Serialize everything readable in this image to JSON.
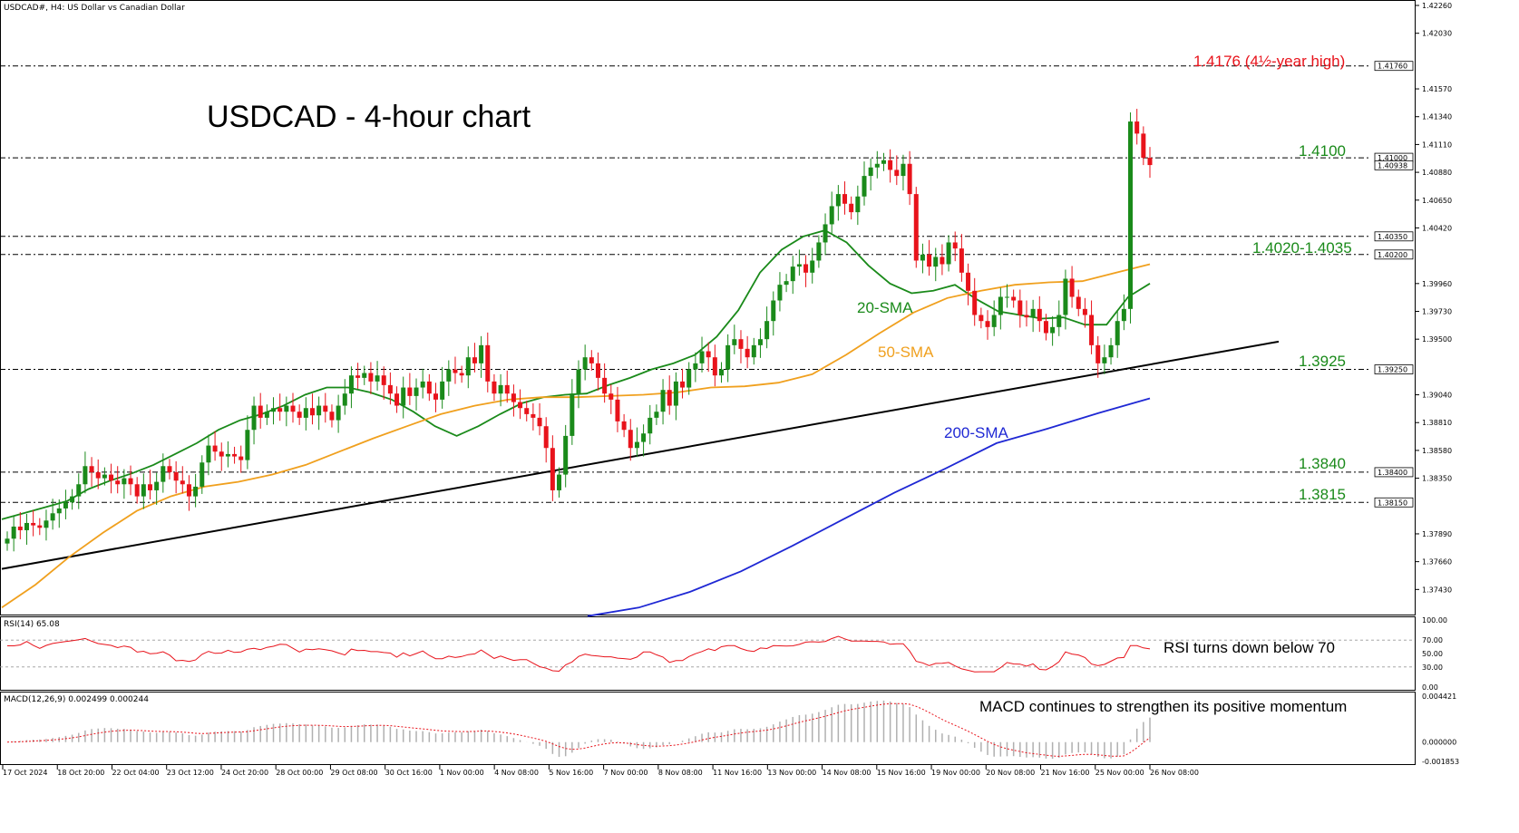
{
  "header": {
    "symbol_label": "USDCAD#, H4:  US Dollar vs Canadian Dollar",
    "title": "USDCAD - 4-hour chart"
  },
  "colors": {
    "bull": "#1a8a1a",
    "bear": "#e8131b",
    "sma20": "#1a8a1a",
    "sma50": "#f0a01e",
    "sma200": "#1f28d4",
    "trendline": "#000000",
    "level_red": "#e8131b",
    "level_green": "#1a8a1a",
    "rsi": "#e8131b",
    "macd_signal": "#e8131b",
    "macd_hist": "#b0b0b0",
    "grid_dash": "#000000"
  },
  "chart_data": [
    {
      "type": "candlestick",
      "name": "main",
      "ylim": [
        1.3723,
        1.4229
      ],
      "y_ticks": [
        "1.42260",
        "1.42030",
        "1.41570",
        "1.41340",
        "1.41110",
        "1.40880",
        "1.40650",
        "1.40420",
        "1.39960",
        "1.39730",
        "1.39500",
        "1.39040",
        "1.38810",
        "1.38580",
        "1.38350",
        "1.37890",
        "1.37660",
        "1.37430"
      ],
      "y_tick_values": [
        1.4226,
        1.4203,
        1.4157,
        1.4134,
        1.4111,
        1.4088,
        1.4065,
        1.4042,
        1.3996,
        1.3973,
        1.395,
        1.3904,
        1.3881,
        1.3858,
        1.3835,
        1.3789,
        1.3766,
        1.3743
      ],
      "price_tags": [
        {
          "label": "1.41760",
          "value": 1.4176
        },
        {
          "label": "1.41000",
          "value": 1.41
        },
        {
          "label": "1.40938",
          "value": 1.40938
        },
        {
          "label": "1.40350",
          "value": 1.4035
        },
        {
          "label": "1.40200",
          "value": 1.402
        },
        {
          "label": "1.39250",
          "value": 1.3925
        },
        {
          "label": "1.38400",
          "value": 1.384
        },
        {
          "label": "1.38150",
          "value": 1.3815
        }
      ],
      "levels": [
        {
          "label": "1.4176 (4½-year high)",
          "value": 1.4176,
          "color": "red"
        },
        {
          "label": "1.4100",
          "value": 1.41,
          "color": "green"
        },
        {
          "label": "1.4020-1.4035",
          "value": 1.4035,
          "value2": 1.402,
          "color": "green"
        },
        {
          "label": "1.3925",
          "value": 1.3925,
          "color": "green"
        },
        {
          "label": "1.3840",
          "value": 1.384,
          "color": "green"
        },
        {
          "label": "1.3815",
          "value": 1.3815,
          "color": "green"
        }
      ],
      "x_ticks": [
        "17 Oct 2024",
        "18 Oct 20:00",
        "22 Oct 04:00",
        "23 Oct 12:00",
        "24 Oct 20:00",
        "28 Oct 00:00",
        "29 Oct 08:00",
        "30 Oct 16:00",
        "1 Nov 00:00",
        "4 Nov 08:00",
        "5 Nov 16:00",
        "7 Nov 00:00",
        "8 Nov 08:00",
        "11 Nov 16:00",
        "13 Nov 00:00",
        "14 Nov 08:00",
        "15 Nov 16:00",
        "19 Nov 00:00",
        "20 Nov 08:00",
        "21 Nov 16:00",
        "25 Nov 00:00",
        "26 Nov 08:00"
      ],
      "ohlc_closes": [
        1.3785,
        1.3795,
        1.3792,
        1.3798,
        1.3796,
        1.3794,
        1.38,
        1.3806,
        1.381,
        1.3815,
        1.382,
        1.383,
        1.3845,
        1.384,
        1.3835,
        1.3838,
        1.3833,
        1.383,
        1.3835,
        1.383,
        1.382,
        1.383,
        1.3825,
        1.3832,
        1.3845,
        1.384,
        1.3833,
        1.383,
        1.382,
        1.3828,
        1.3848,
        1.3862,
        1.3857,
        1.3853,
        1.3855,
        1.3853,
        1.385,
        1.3875,
        1.3895,
        1.3885,
        1.389,
        1.3893,
        1.389,
        1.3895,
        1.389,
        1.3885,
        1.3893,
        1.3887,
        1.3895,
        1.389,
        1.3883,
        1.3895,
        1.3905,
        1.392,
        1.3918,
        1.3922,
        1.3915,
        1.392,
        1.3912,
        1.3905,
        1.3895,
        1.391,
        1.3903,
        1.391,
        1.3915,
        1.3905,
        1.39,
        1.3915,
        1.3925,
        1.3922,
        1.392,
        1.3935,
        1.393,
        1.3945,
        1.3915,
        1.3905,
        1.3912,
        1.3905,
        1.3898,
        1.3893,
        1.3888,
        1.3885,
        1.3878,
        1.386,
        1.3825,
        1.3838,
        1.387,
        1.3905,
        1.3925,
        1.3935,
        1.393,
        1.3918,
        1.3905,
        1.39,
        1.3882,
        1.3875,
        1.386,
        1.3865,
        1.3872,
        1.3885,
        1.389,
        1.3908,
        1.3895,
        1.3915,
        1.391,
        1.3925,
        1.393,
        1.394,
        1.3935,
        1.392,
        1.3925,
        1.3945,
        1.395,
        1.3942,
        1.3935,
        1.3945,
        1.395,
        1.3965,
        1.3982,
        1.3995,
        1.3998,
        1.401,
        1.4012,
        1.4005,
        1.4015,
        1.403,
        1.4045,
        1.406,
        1.407,
        1.4062,
        1.4055,
        1.4068,
        1.4085,
        1.4092,
        1.4095,
        1.4098,
        1.409,
        1.4085,
        1.4095,
        1.407,
        1.4015,
        1.402,
        1.401,
        1.4018,
        1.4012,
        1.403,
        1.4025,
        1.4005,
        1.399,
        1.397,
        1.3965,
        1.396,
        1.397,
        1.3985,
        1.3985,
        1.3982,
        1.397,
        1.3968,
        1.3975,
        1.3965,
        1.3955,
        1.396,
        1.397,
        1.4,
        1.3985,
        1.3975,
        1.397,
        1.3945,
        1.393,
        1.3935,
        1.3945,
        1.3965,
        1.3975,
        1.413,
        1.412,
        1.41,
        1.4094
      ],
      "sma20_approx": [
        1.3801,
        1.3806,
        1.3811,
        1.3816,
        1.3826,
        1.3833,
        1.3839,
        1.3846,
        1.3855,
        1.3864,
        1.3875,
        1.3883,
        1.3888,
        1.3895,
        1.3904,
        1.391,
        1.391,
        1.3906,
        1.39,
        1.389,
        1.3878,
        1.387,
        1.3878,
        1.3888,
        1.3897,
        1.3902,
        1.3904,
        1.3905,
        1.3912,
        1.3918,
        1.3925,
        1.393,
        1.3937,
        1.3952,
        1.3974,
        1.4005,
        1.4024,
        1.4035,
        1.404,
        1.403,
        1.4011,
        1.3996,
        1.3988,
        1.399,
        1.3995,
        1.3983,
        1.3973,
        1.397,
        1.3967,
        1.3968,
        1.3962,
        1.3962,
        1.3985,
        1.3996
      ],
      "sma50_approx": [
        1.3728,
        1.3747,
        1.377,
        1.379,
        1.3808,
        1.382,
        1.3828,
        1.3832,
        1.3838,
        1.3846,
        1.3857,
        1.3868,
        1.3878,
        1.3888,
        1.3895,
        1.39,
        1.3902,
        1.3902,
        1.3903,
        1.3904,
        1.3906,
        1.391,
        1.3911,
        1.3914,
        1.3921,
        1.3937,
        1.3955,
        1.3972,
        1.3984,
        1.399,
        1.3995,
        1.3997,
        1.3998,
        1.4005,
        1.4012
      ],
      "sma200_approx": [
        1.3721,
        1.3728,
        1.3741,
        1.3758,
        1.3779,
        1.3801,
        1.3823,
        1.3843,
        1.3864,
        1.3876,
        1.3889,
        1.3901
      ],
      "trendline": {
        "start": 1.376,
        "end": 1.3948
      },
      "labels": [
        "20-SMA",
        "50-SMA",
        "200-SMA"
      ]
    },
    {
      "type": "line",
      "name": "rsi",
      "header_label": "RSI(14) 65.08",
      "ylim": [
        0,
        100
      ],
      "y_ticks": [
        "100.00",
        "70.00",
        "50.00",
        "30.00",
        "0.00"
      ],
      "y_tick_values": [
        100,
        70,
        50,
        30,
        0
      ],
      "annotation": "RSI turns down below 70"
    },
    {
      "type": "bar",
      "name": "macd",
      "header_label": "MACD(12,26,9) 0.002499 0.000244",
      "y_ticks": [
        "0.004421",
        "0.000000",
        "-0.001853"
      ],
      "y_tick_values": [
        0.004421,
        0.0,
        -0.001853
      ],
      "annotation": "MACD continues to strengthen its positive momentum"
    }
  ]
}
